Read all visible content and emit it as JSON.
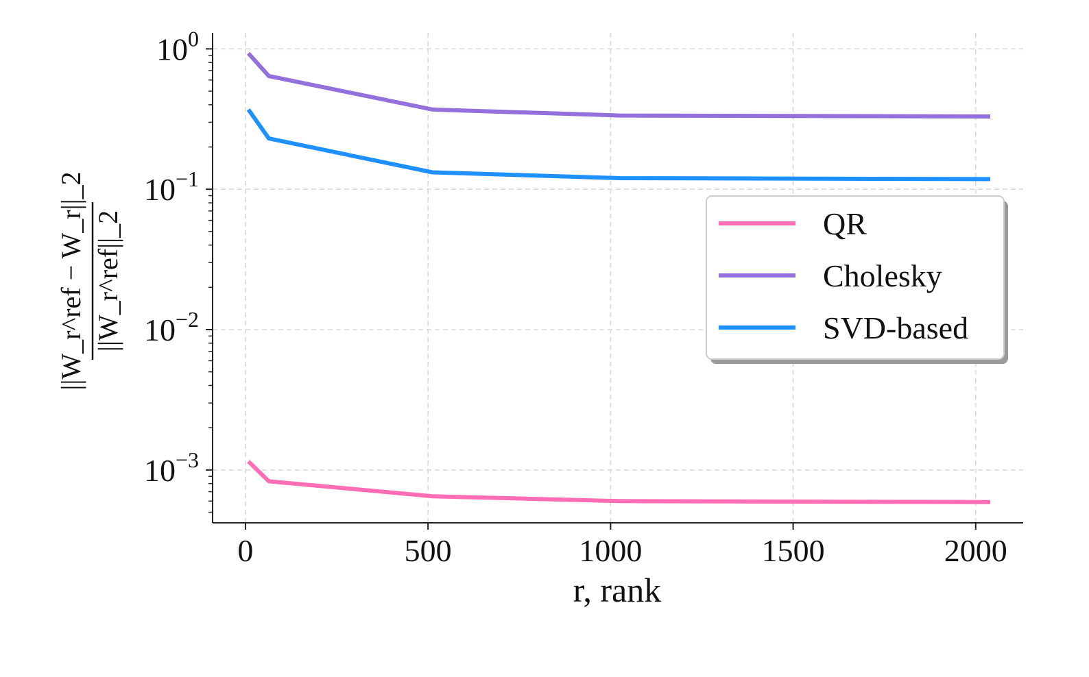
{
  "chart_data": {
    "type": "line",
    "xlabel": "r, rank",
    "ylabel": {
      "numerator": "||W_r^ref − W_r||_2",
      "denominator": "||W_r^ref||_2"
    },
    "yscale": "log",
    "xlim": [
      -90,
      2130
    ],
    "ylim": [
      0.00042,
      1.3
    ],
    "xticks": [
      0,
      500,
      1000,
      1500,
      2000
    ],
    "xtick_labels": [
      "0",
      "500",
      "1000",
      "1500",
      "2000"
    ],
    "yticks": [
      1,
      0.1,
      0.01,
      0.001
    ],
    "ytick_labels": [
      {
        "base": "10",
        "exp": "0"
      },
      {
        "base": "10",
        "exp": "−1"
      },
      {
        "base": "10",
        "exp": "−2"
      },
      {
        "base": "10",
        "exp": "−3"
      }
    ],
    "grid": true,
    "legend_position": "center-right",
    "series": [
      {
        "name": "QR",
        "color": "#ff6eb4",
        "x": [
          8,
          64,
          512,
          1024,
          2040
        ],
        "y": [
          0.00115,
          0.00083,
          0.00065,
          0.0006,
          0.00059
        ]
      },
      {
        "name": "Cholesky",
        "color": "#9370db",
        "x": [
          8,
          64,
          512,
          1024,
          2040
        ],
        "y": [
          0.93,
          0.64,
          0.37,
          0.335,
          0.33
        ]
      },
      {
        "name": "SVD-based",
        "color": "#1e90ff",
        "x": [
          8,
          64,
          512,
          1024,
          2040
        ],
        "y": [
          0.37,
          0.23,
          0.132,
          0.12,
          0.118
        ]
      }
    ]
  }
}
